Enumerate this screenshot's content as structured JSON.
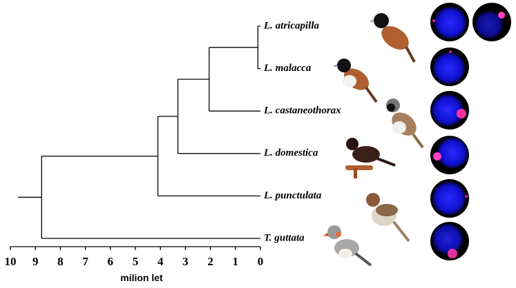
{
  "tree": {
    "root_age": 9.7,
    "root": {
      "age": 8.75,
      "children": [
        {
          "age": 4.1,
          "children": [
            {
              "age": 3.3,
              "children": [
                {
                  "age": 2.05,
                  "children": [
                    {
                      "age": 0.1,
                      "children": [
                        {
                          "label": "L. atricapilla"
                        },
                        {
                          "label": "L. malacca"
                        }
                      ]
                    },
                    {
                      "label": "L. castaneothorax"
                    }
                  ]
                },
                {
                  "label": "L. domestica"
                }
              ]
            },
            {
              "label": "L. punctulata"
            }
          ]
        },
        {
          "label": "T. guttata"
        }
      ]
    }
  },
  "axis": {
    "xlim": [
      10,
      0
    ],
    "xticks": [
      10,
      9,
      8,
      7,
      6,
      5,
      4,
      3,
      2,
      1,
      0
    ],
    "label": "milion let"
  }
}
